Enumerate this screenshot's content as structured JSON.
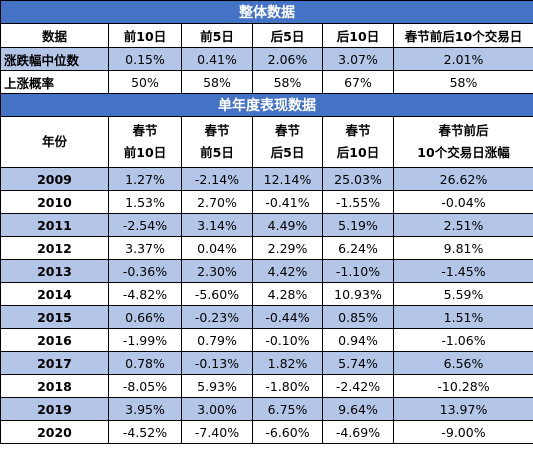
{
  "overall": {
    "title": "整体数据",
    "headers": [
      "数据",
      "前10日",
      "前5日",
      "后5日",
      "后10日",
      "春节前后10个交易日"
    ],
    "rows": [
      {
        "label": "涨跌幅中位数",
        "values": [
          "0.15%",
          "0.41%",
          "2.06%",
          "3.07%",
          "2.01%"
        ]
      },
      {
        "label": "上涨概率",
        "values": [
          "50%",
          "58%",
          "58%",
          "67%",
          "58%"
        ]
      }
    ]
  },
  "yearly": {
    "title": "单年度表现数据",
    "headers": [
      {
        "l1": "年份",
        "l2": ""
      },
      {
        "l1": "春节",
        "l2": "前10日"
      },
      {
        "l1": "春节",
        "l2": "前5日"
      },
      {
        "l1": "春节",
        "l2": "后5日"
      },
      {
        "l1": "春节",
        "l2": "后10日"
      },
      {
        "l1": "春节前后",
        "l2": "10个交易日涨幅"
      }
    ],
    "rows": [
      [
        "2009",
        "1.27%",
        "-2.14%",
        "12.14%",
        "25.03%",
        "26.62%"
      ],
      [
        "2010",
        "1.53%",
        "2.70%",
        "-0.41%",
        "-1.55%",
        "-0.04%"
      ],
      [
        "2011",
        "-2.54%",
        "3.14%",
        "4.49%",
        "5.19%",
        "2.51%"
      ],
      [
        "2012",
        "3.37%",
        "0.04%",
        "2.29%",
        "6.24%",
        "9.81%"
      ],
      [
        "2013",
        "-0.36%",
        "2.30%",
        "4.42%",
        "-1.10%",
        "-1.45%"
      ],
      [
        "2014",
        "-4.82%",
        "-5.60%",
        "4.28%",
        "10.93%",
        "5.59%"
      ],
      [
        "2015",
        "0.66%",
        "-0.23%",
        "-0.44%",
        "0.85%",
        "1.51%"
      ],
      [
        "2016",
        "-1.99%",
        "0.79%",
        "-0.10%",
        "0.94%",
        "-1.06%"
      ],
      [
        "2017",
        "0.78%",
        "-0.13%",
        "1.82%",
        "5.74%",
        "6.56%"
      ],
      [
        "2018",
        "-8.05%",
        "5.93%",
        "-1.80%",
        "-2.42%",
        "-10.28%"
      ],
      [
        "2019",
        "3.95%",
        "3.00%",
        "6.75%",
        "9.64%",
        "13.97%"
      ],
      [
        "2020",
        "-4.52%",
        "-7.40%",
        "-6.60%",
        "-4.69%",
        "-9.00%"
      ]
    ]
  },
  "colors": {
    "header_blue": "#4472c4",
    "stripe_blue": "#b4c6e7"
  }
}
